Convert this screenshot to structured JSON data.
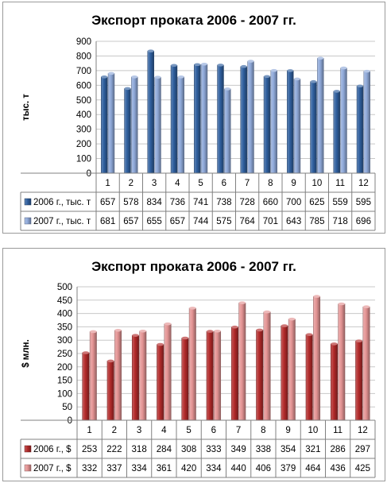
{
  "chart_data": [
    {
      "type": "bar",
      "title": "Экспорт проката 2006 - 2007 гг.",
      "ylabel": "тыс. т",
      "categories": [
        "1",
        "2",
        "3",
        "4",
        "5",
        "6",
        "7",
        "8",
        "9",
        "10",
        "11",
        "12"
      ],
      "yticks": [
        0,
        100,
        200,
        300,
        400,
        500,
        600,
        700,
        800,
        900
      ],
      "ylim": [
        0,
        900
      ],
      "grid": true,
      "legend_placement": "data table below chart",
      "series": [
        {
          "name": "2006 г., тыс. т",
          "values": [
            657,
            578,
            834,
            736,
            741,
            738,
            728,
            660,
            700,
            625,
            559,
            595
          ],
          "color": "#2f5f9e"
        },
        {
          "name": "2007 г., тыс. т",
          "values": [
            681,
            657,
            655,
            657,
            744,
            575,
            764,
            701,
            643,
            785,
            718,
            696
          ],
          "color": "#8fa9d9"
        }
      ]
    },
    {
      "type": "bar",
      "title": "Экспорт проката 2006 - 2007 гг.",
      "ylabel": "$ млн.",
      "categories": [
        "1",
        "2",
        "3",
        "4",
        "5",
        "6",
        "7",
        "8",
        "9",
        "10",
        "11",
        "12"
      ],
      "yticks": [
        0,
        50,
        100,
        150,
        200,
        250,
        300,
        350,
        400,
        450,
        500
      ],
      "ylim": [
        0,
        500
      ],
      "grid": true,
      "legend_placement": "data table below chart",
      "series": [
        {
          "name": "2006 г., $",
          "values": [
            253,
            222,
            318,
            284,
            308,
            333,
            349,
            338,
            354,
            321,
            286,
            297
          ],
          "color": "#b22a2a"
        },
        {
          "name": "2007 г., $",
          "values": [
            332,
            337,
            334,
            361,
            420,
            334,
            440,
            406,
            379,
            464,
            436,
            425
          ],
          "color": "#e49494"
        }
      ]
    }
  ]
}
